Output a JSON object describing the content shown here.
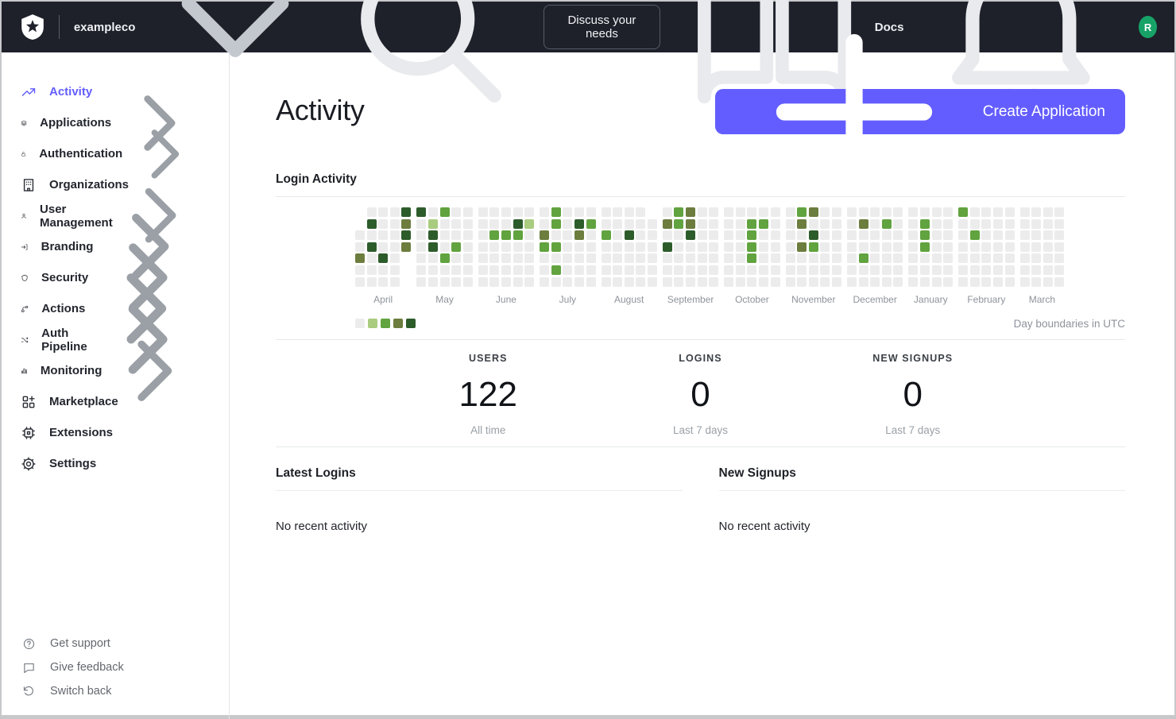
{
  "topbar": {
    "tenant": "exampleco",
    "discuss_button": "Discuss your needs",
    "docs_label": "Docs",
    "avatar_initial": "R"
  },
  "sidebar": {
    "items": [
      {
        "label": "Activity",
        "icon": "activity-icon",
        "chevron": false,
        "active": true
      },
      {
        "label": "Applications",
        "icon": "applications-icon",
        "chevron": true,
        "active": false
      },
      {
        "label": "Authentication",
        "icon": "lock-icon",
        "chevron": true,
        "active": false
      },
      {
        "label": "Organizations",
        "icon": "building-icon",
        "chevron": false,
        "active": false
      },
      {
        "label": "User Management",
        "icon": "user-icon",
        "chevron": true,
        "active": false
      },
      {
        "label": "Branding",
        "icon": "branding-icon",
        "chevron": true,
        "active": false
      },
      {
        "label": "Security",
        "icon": "shield-icon",
        "chevron": true,
        "active": false
      },
      {
        "label": "Actions",
        "icon": "actions-icon",
        "chevron": true,
        "active": false
      },
      {
        "label": "Auth Pipeline",
        "icon": "pipeline-icon",
        "chevron": true,
        "active": false
      },
      {
        "label": "Monitoring",
        "icon": "monitoring-icon",
        "chevron": true,
        "active": false
      },
      {
        "label": "Marketplace",
        "icon": "marketplace-icon",
        "chevron": false,
        "active": false
      },
      {
        "label": "Extensions",
        "icon": "extensions-icon",
        "chevron": false,
        "active": false
      },
      {
        "label": "Settings",
        "icon": "settings-icon",
        "chevron": false,
        "active": false
      }
    ],
    "footer_items": [
      {
        "label": "Get support",
        "icon": "help-icon"
      },
      {
        "label": "Give feedback",
        "icon": "feedback-icon"
      },
      {
        "label": "Switch back",
        "icon": "switch-back-icon"
      }
    ]
  },
  "main": {
    "title": "Activity",
    "create_button": "Create Application",
    "login_activity_title": "Login Activity",
    "utc_note": "Day boundaries in UTC",
    "stats": [
      {
        "label": "USERS",
        "value": "122",
        "caption": "All time"
      },
      {
        "label": "LOGINS",
        "value": "0",
        "caption": "Last 7 days"
      },
      {
        "label": "NEW SIGNUPS",
        "value": "0",
        "caption": "Last 7 days"
      }
    ],
    "latest_logins_title": "Latest Logins",
    "new_signups_title": "New Signups",
    "no_activity": "No recent activity"
  },
  "colors": {
    "navbar_bg": "#1e212a",
    "accent_indigo": "#635dff",
    "avatar_green": "#17a368"
  },
  "chart_data": {
    "type": "heatmap",
    "title": "Login Activity",
    "note": "Day boundaries in UTC",
    "legend_levels": [
      "#ececec",
      "#a9cc7f",
      "#61a33f",
      "#6c7d3e",
      "#2d5c2b"
    ],
    "level_meaning": "0 = no logins, 4 = most logins per day",
    "months": [
      {
        "name": "April",
        "rows": [
          [
            null,
            0,
            0,
            0,
            4
          ],
          [
            null,
            4,
            0,
            0,
            3
          ],
          [
            0,
            0,
            0,
            0,
            4
          ],
          [
            0,
            4,
            0,
            0,
            3
          ],
          [
            3,
            0,
            4,
            0,
            null
          ],
          [
            0,
            0,
            0,
            0,
            null
          ],
          [
            0,
            0,
            0,
            0,
            null
          ]
        ]
      },
      {
        "name": "May",
        "rows": [
          [
            4,
            0,
            2,
            0,
            0
          ],
          [
            0,
            1,
            0,
            0,
            0
          ],
          [
            0,
            4,
            0,
            0,
            0
          ],
          [
            0,
            4,
            0,
            2,
            0
          ],
          [
            0,
            0,
            2,
            0,
            0
          ],
          [
            0,
            0,
            0,
            0,
            0
          ],
          [
            0,
            0,
            0,
            0,
            0
          ]
        ]
      },
      {
        "name": "June",
        "rows": [
          [
            0,
            0,
            0,
            0,
            0
          ],
          [
            0,
            0,
            0,
            4,
            1
          ],
          [
            0,
            2,
            2,
            2,
            0
          ],
          [
            0,
            0,
            0,
            0,
            0
          ],
          [
            0,
            0,
            0,
            0,
            0
          ],
          [
            0,
            0,
            0,
            0,
            0
          ],
          [
            0,
            0,
            0,
            0,
            0
          ]
        ]
      },
      {
        "name": "July",
        "rows": [
          [
            0,
            2,
            0,
            0,
            0
          ],
          [
            0,
            2,
            0,
            4,
            2
          ],
          [
            3,
            0,
            0,
            3,
            0
          ],
          [
            2,
            2,
            0,
            0,
            0
          ],
          [
            0,
            0,
            0,
            0,
            0
          ],
          [
            0,
            2,
            0,
            0,
            0
          ],
          [
            0,
            0,
            0,
            0,
            0
          ]
        ]
      },
      {
        "name": "August",
        "rows": [
          [
            0,
            0,
            0,
            0,
            null
          ],
          [
            0,
            0,
            0,
            0,
            0
          ],
          [
            2,
            0,
            4,
            0,
            0
          ],
          [
            0,
            0,
            0,
            0,
            0
          ],
          [
            0,
            0,
            0,
            0,
            0
          ],
          [
            0,
            0,
            0,
            0,
            0
          ],
          [
            0,
            0,
            0,
            0,
            0
          ]
        ]
      },
      {
        "name": "September",
        "rows": [
          [
            0,
            2,
            3,
            0,
            0
          ],
          [
            3,
            2,
            3,
            0,
            0
          ],
          [
            0,
            0,
            4,
            0,
            0
          ],
          [
            4,
            0,
            0,
            0,
            0
          ],
          [
            0,
            0,
            0,
            0,
            0
          ],
          [
            0,
            0,
            0,
            0,
            0
          ],
          [
            0,
            0,
            0,
            0,
            0
          ]
        ]
      },
      {
        "name": "October",
        "rows": [
          [
            0,
            0,
            0,
            0,
            0
          ],
          [
            0,
            0,
            2,
            2,
            0
          ],
          [
            0,
            0,
            2,
            0,
            0
          ],
          [
            0,
            0,
            2,
            0,
            0
          ],
          [
            0,
            0,
            2,
            0,
            0
          ],
          [
            0,
            0,
            0,
            0,
            0
          ],
          [
            0,
            0,
            0,
            0,
            0
          ]
        ]
      },
      {
        "name": "November",
        "rows": [
          [
            0,
            2,
            3,
            0,
            0
          ],
          [
            0,
            3,
            0,
            0,
            0
          ],
          [
            0,
            0,
            4,
            0,
            0
          ],
          [
            0,
            3,
            2,
            0,
            0
          ],
          [
            0,
            0,
            0,
            0,
            0
          ],
          [
            0,
            0,
            0,
            0,
            0
          ],
          [
            0,
            0,
            0,
            0,
            0
          ]
        ]
      },
      {
        "name": "December",
        "rows": [
          [
            0,
            0,
            0,
            0,
            0
          ],
          [
            0,
            3,
            0,
            2,
            0
          ],
          [
            0,
            0,
            0,
            0,
            0
          ],
          [
            0,
            0,
            0,
            0,
            0
          ],
          [
            0,
            2,
            0,
            0,
            0
          ],
          [
            0,
            0,
            0,
            0,
            0
          ],
          [
            0,
            0,
            0,
            0,
            0
          ]
        ]
      },
      {
        "name": "January",
        "rows": [
          [
            0,
            0,
            0,
            0
          ],
          [
            0,
            2,
            0,
            0
          ],
          [
            0,
            2,
            0,
            0
          ],
          [
            0,
            2,
            0,
            0
          ],
          [
            0,
            0,
            0,
            0
          ],
          [
            0,
            0,
            0,
            0
          ],
          [
            0,
            0,
            0,
            0
          ]
        ]
      },
      {
        "name": "February",
        "rows": [
          [
            2,
            0,
            0,
            0,
            0
          ],
          [
            0,
            0,
            0,
            0,
            0
          ],
          [
            0,
            2,
            0,
            0,
            0
          ],
          [
            0,
            0,
            0,
            0,
            0
          ],
          [
            0,
            0,
            0,
            0,
            0
          ],
          [
            0,
            0,
            0,
            0,
            0
          ],
          [
            0,
            0,
            0,
            0,
            0
          ]
        ]
      },
      {
        "name": "March",
        "rows": [
          [
            0,
            0,
            0,
            0
          ],
          [
            0,
            0,
            0,
            0
          ],
          [
            0,
            0,
            0,
            0
          ],
          [
            0,
            0,
            0,
            0
          ],
          [
            0,
            0,
            0,
            0
          ],
          [
            0,
            0,
            0,
            0
          ],
          [
            0,
            0,
            0,
            0
          ]
        ]
      }
    ]
  }
}
